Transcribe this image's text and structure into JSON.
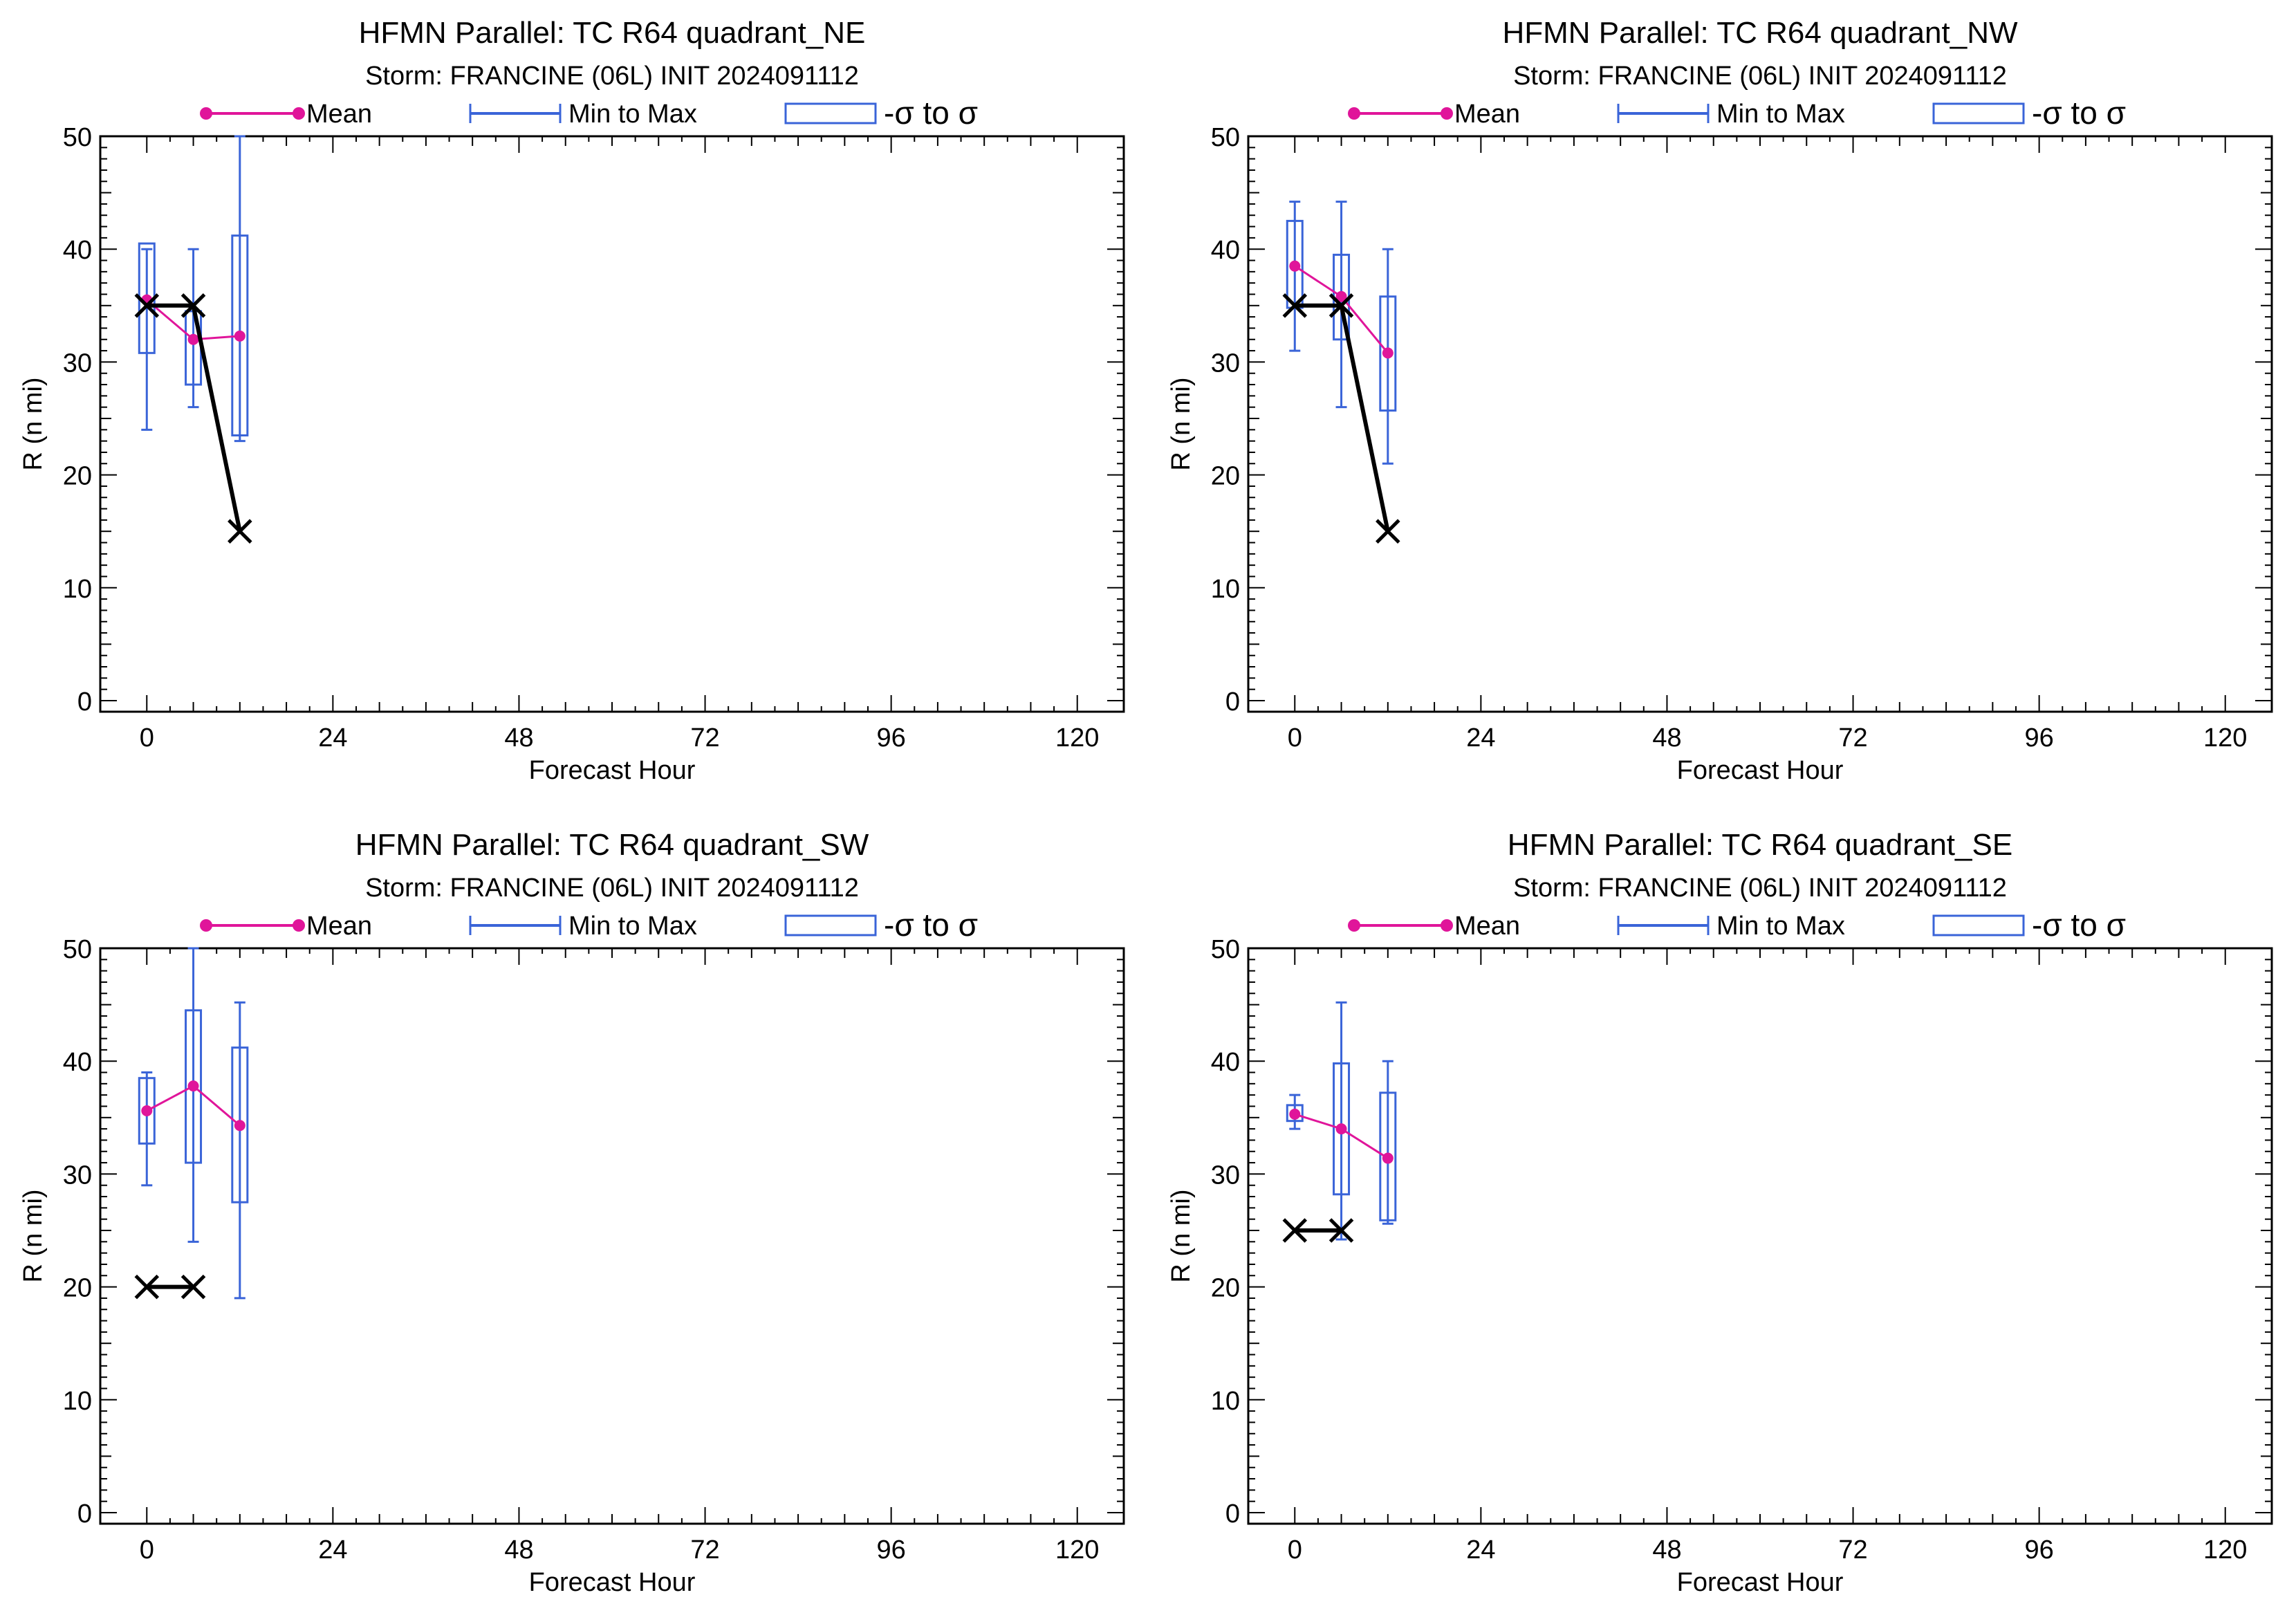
{
  "colors": {
    "mean": "#e0159a",
    "minmax": "#3a64d8",
    "box": "#3a64d8",
    "best_track": "#000000",
    "axis": "#000000",
    "background": "#ffffff"
  },
  "legend": {
    "mean_label": "Mean",
    "minmax_label": "Min to Max",
    "sigma_label": "-σ to σ"
  },
  "chart_data": [
    {
      "type": "box",
      "title": "HFMN Parallel: TC  R64 quadrant_NE",
      "subtitle": "Storm: FRANCINE (06L) INIT 2024091112",
      "xlabel": "Forecast Hour",
      "ylabel": "R (n mi)",
      "xlim": [
        -6,
        126
      ],
      "ylim": [
        0,
        50
      ],
      "x_ticks": [
        0,
        24,
        48,
        72,
        96,
        120
      ],
      "y_ticks": [
        0,
        10,
        20,
        30,
        40,
        50
      ],
      "grid": false,
      "legend_position": "top",
      "x": [
        0,
        6,
        12
      ],
      "mean": [
        35.5,
        32.0,
        32.3
      ],
      "min": [
        24.0,
        26.0,
        23.0
      ],
      "max": [
        40.0,
        40.0,
        50.0
      ],
      "sigma_low": [
        30.8,
        28.0,
        23.5
      ],
      "sigma_high": [
        40.5,
        34.5,
        41.2
      ],
      "best_track": {
        "x": [
          0,
          6,
          12
        ],
        "y": [
          35,
          35,
          15
        ]
      }
    },
    {
      "type": "box",
      "title": "HFMN Parallel: TC  R64 quadrant_NW",
      "subtitle": "Storm: FRANCINE (06L) INIT 2024091112",
      "xlabel": "Forecast Hour",
      "ylabel": "R (n mi)",
      "xlim": [
        -6,
        126
      ],
      "ylim": [
        0,
        50
      ],
      "x_ticks": [
        0,
        24,
        48,
        72,
        96,
        120
      ],
      "y_ticks": [
        0,
        10,
        20,
        30,
        40,
        50
      ],
      "grid": false,
      "legend_position": "top",
      "x": [
        0,
        6,
        12
      ],
      "mean": [
        38.5,
        35.8,
        30.8
      ],
      "min": [
        31.0,
        26.0,
        21.0
      ],
      "max": [
        44.2,
        44.2,
        40.0
      ],
      "sigma_low": [
        34.8,
        32.0,
        25.7
      ],
      "sigma_high": [
        42.5,
        39.5,
        35.8
      ],
      "best_track": {
        "x": [
          0,
          6,
          12
        ],
        "y": [
          35,
          35,
          15
        ]
      }
    },
    {
      "type": "box",
      "title": "HFMN Parallel: TC  R64 quadrant_SW",
      "subtitle": "Storm: FRANCINE (06L) INIT 2024091112",
      "xlabel": "Forecast Hour",
      "ylabel": "R (n mi)",
      "xlim": [
        -6,
        126
      ],
      "ylim": [
        0,
        50
      ],
      "x_ticks": [
        0,
        24,
        48,
        72,
        96,
        120
      ],
      "y_ticks": [
        0,
        10,
        20,
        30,
        40,
        50
      ],
      "grid": false,
      "legend_position": "top",
      "x": [
        0,
        6,
        12
      ],
      "mean": [
        35.6,
        37.8,
        34.3
      ],
      "min": [
        29.0,
        24.0,
        19.0
      ],
      "max": [
        39.0,
        50.0,
        45.2
      ],
      "sigma_low": [
        32.7,
        31.0,
        27.5
      ],
      "sigma_high": [
        38.5,
        44.5,
        41.2
      ],
      "best_track": {
        "x": [
          0,
          6
        ],
        "y": [
          20,
          20
        ]
      }
    },
    {
      "type": "box",
      "title": "HFMN Parallel: TC  R64 quadrant_SE",
      "subtitle": "Storm: FRANCINE (06L) INIT 2024091112",
      "xlabel": "Forecast Hour",
      "ylabel": "R (n mi)",
      "xlim": [
        -6,
        126
      ],
      "ylim": [
        0,
        50
      ],
      "x_ticks": [
        0,
        24,
        48,
        72,
        96,
        120
      ],
      "y_ticks": [
        0,
        10,
        20,
        30,
        40,
        50
      ],
      "grid": false,
      "legend_position": "top",
      "x": [
        0,
        6,
        12
      ],
      "mean": [
        35.3,
        34.0,
        31.4
      ],
      "min": [
        34.0,
        24.2,
        25.6
      ],
      "max": [
        37.0,
        45.2,
        40.0
      ],
      "sigma_low": [
        34.7,
        28.2,
        25.9
      ],
      "sigma_high": [
        36.1,
        39.8,
        37.2
      ],
      "best_track": {
        "x": [
          0,
          6
        ],
        "y": [
          25,
          25
        ]
      }
    }
  ]
}
